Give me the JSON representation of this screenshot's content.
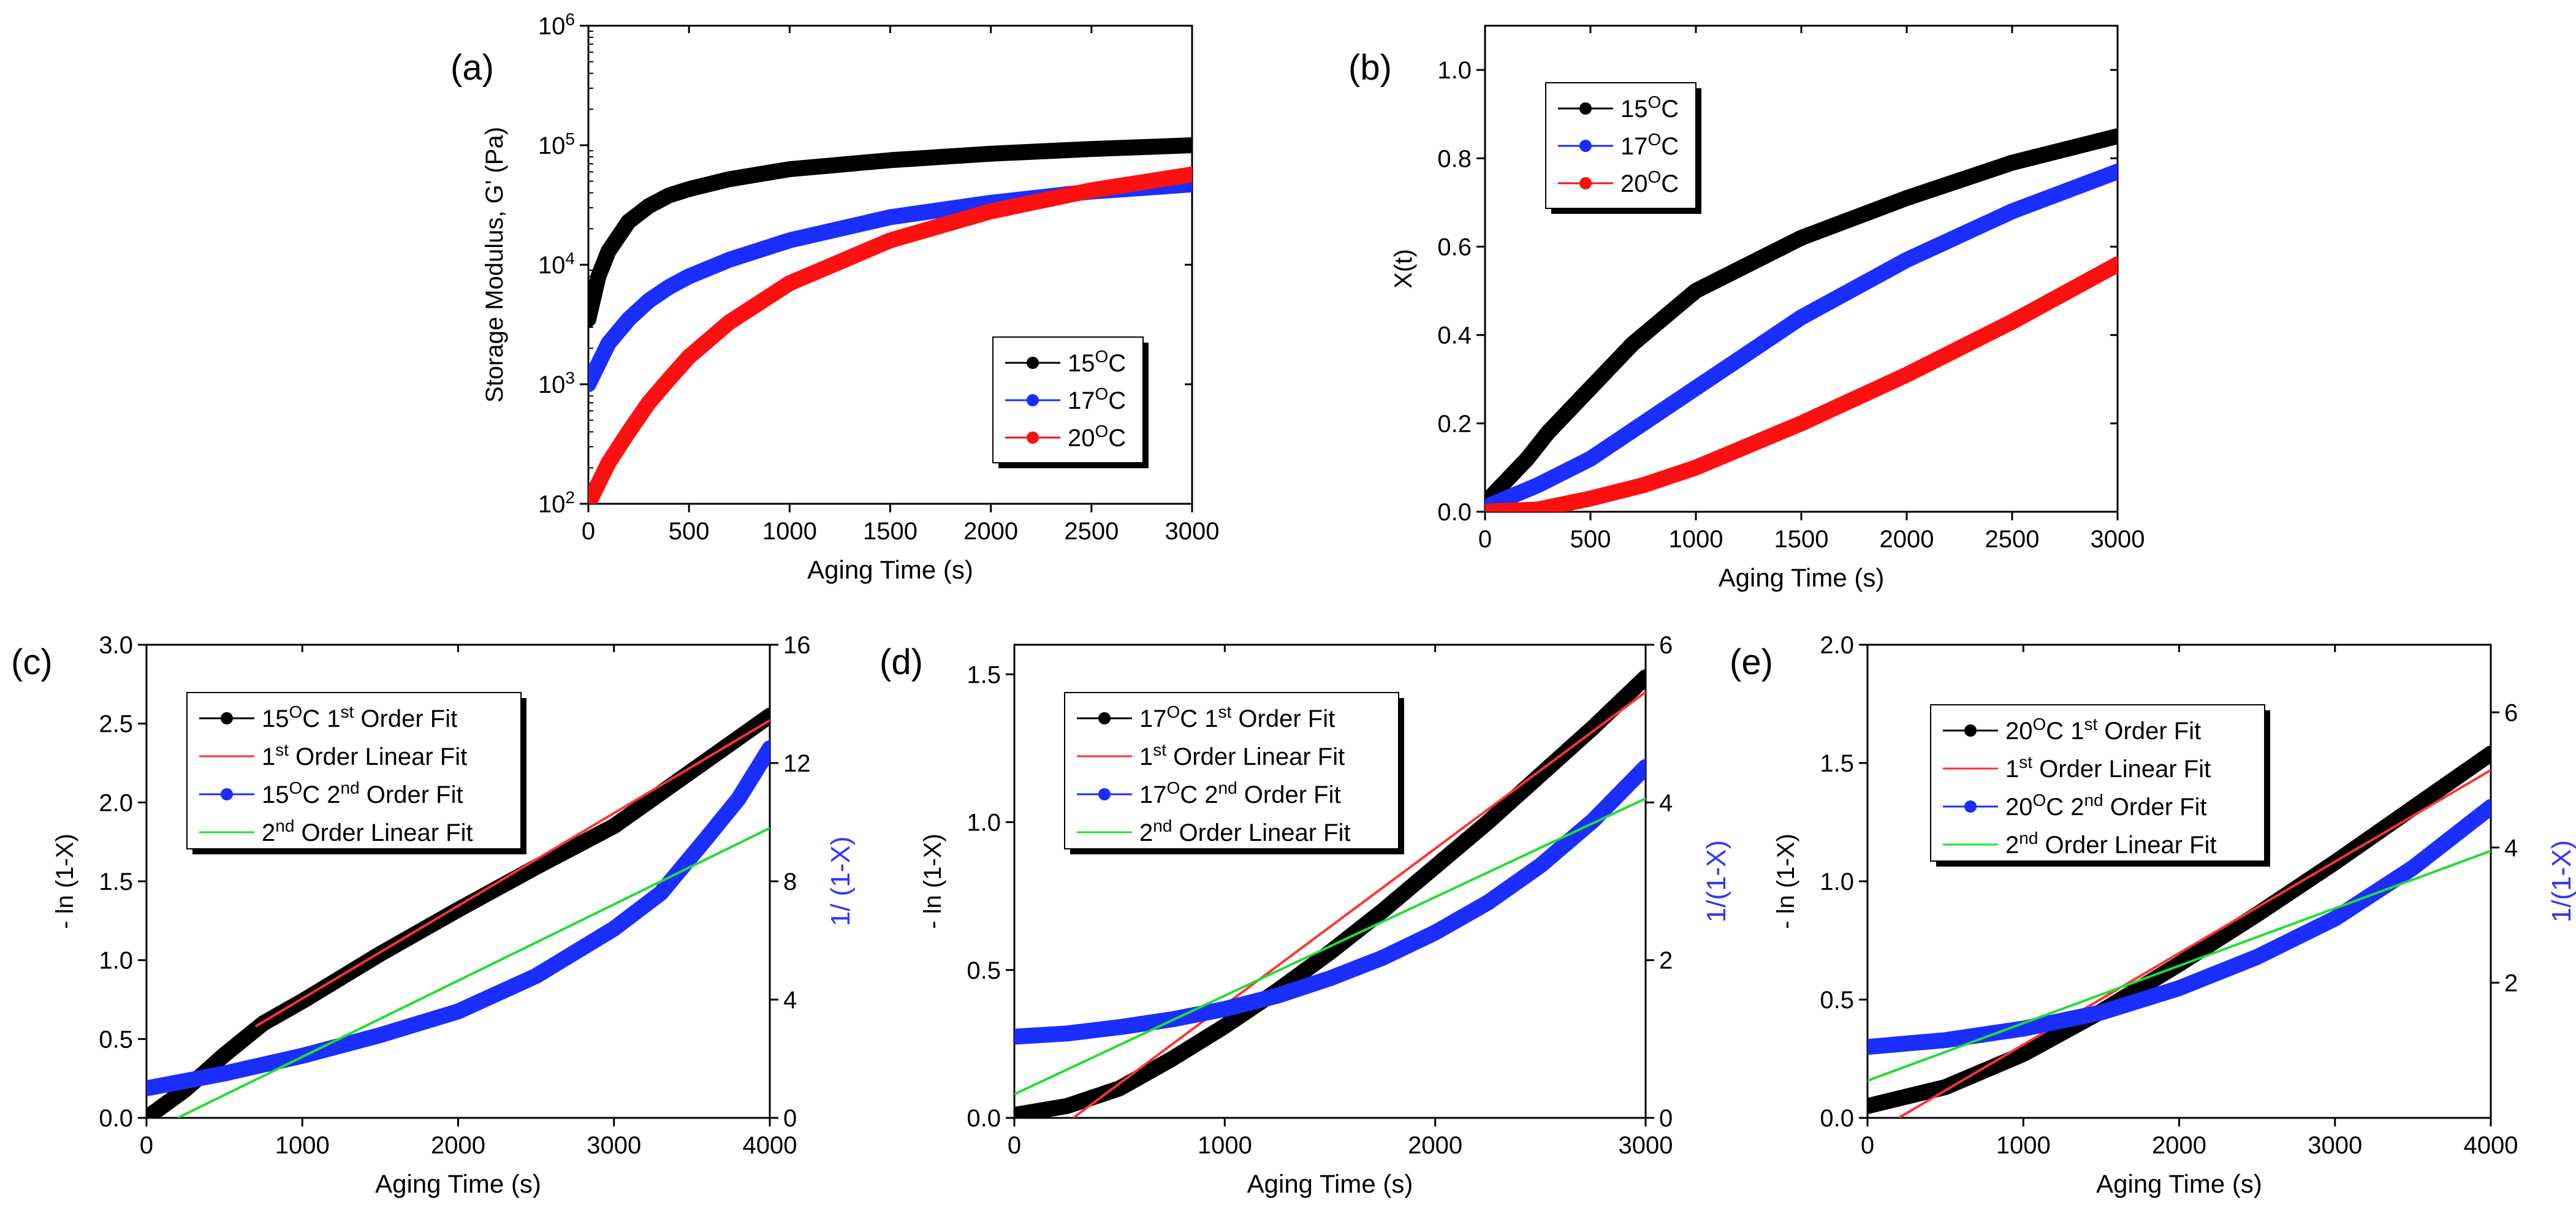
{
  "figure": {
    "colors": {
      "black": "#000000",
      "blue": "#1a2eff",
      "red": "#ff1010",
      "green": "#22dd33",
      "fit_red": "#ff3333",
      "right_axis": "#3333ff"
    }
  },
  "chart_data": [
    {
      "id": "a",
      "panel_label": "(a)",
      "type": "line",
      "title": "",
      "xlabel": "Aging Time (s)",
      "ylabel": "Storage Modulus, G' (Pa)",
      "xlim": [
        0,
        3000
      ],
      "ylim": [
        100,
        1000000
      ],
      "yscale": "log",
      "xticks": [
        0,
        500,
        1000,
        1500,
        2000,
        2500,
        3000
      ],
      "xtick_labels": [
        "0",
        "500",
        "1000",
        "1500",
        "2000",
        "2500",
        "3000"
      ],
      "yticks": [
        100,
        1000,
        10000,
        100000,
        1000000
      ],
      "ytick_labels": [
        {
          "base": "10",
          "exp": "2"
        },
        {
          "base": "10",
          "exp": "3"
        },
        {
          "base": "10",
          "exp": "4"
        },
        {
          "base": "10",
          "exp": "5"
        },
        {
          "base": "10",
          "exp": "6"
        }
      ],
      "legend": {
        "position": "middle-right",
        "entries": [
          {
            "pre": "15",
            "sup": "O",
            "post": "C",
            "color": "black"
          },
          {
            "pre": "17",
            "sup": "O",
            "post": "C",
            "color": "blue"
          },
          {
            "pre": "20",
            "sup": "O",
            "post": "C",
            "color": "red"
          }
        ]
      },
      "series": [
        {
          "name": "15 C",
          "color": "black",
          "style": "dots",
          "x": [
            0,
            50,
            100,
            200,
            300,
            400,
            500,
            700,
            1000,
            1500,
            2000,
            2500,
            3000
          ],
          "y": [
            3500,
            8000,
            13000,
            23000,
            31000,
            38000,
            43000,
            52000,
            63000,
            75000,
            85000,
            93000,
            100000
          ]
        },
        {
          "name": "17 C",
          "color": "blue",
          "style": "dots",
          "x": [
            0,
            100,
            200,
            300,
            400,
            500,
            700,
            1000,
            1500,
            2000,
            2500,
            3000
          ],
          "y": [
            1000,
            2200,
            3500,
            5000,
            6500,
            8000,
            11000,
            16000,
            25000,
            33000,
            41000,
            47000
          ]
        },
        {
          "name": "20 C",
          "color": "red",
          "style": "dots",
          "x": [
            0,
            100,
            200,
            300,
            400,
            500,
            700,
            1000,
            1500,
            2000,
            2500,
            3000
          ],
          "y": [
            100,
            220,
            400,
            700,
            1100,
            1700,
            3300,
            7000,
            16000,
            28000,
            42000,
            57000
          ]
        }
      ]
    },
    {
      "id": "b",
      "panel_label": "(b)",
      "type": "line",
      "title": "",
      "xlabel": "Aging Time (s)",
      "ylabel": "X(t)",
      "xlim": [
        0,
        3000
      ],
      "ylim": [
        0,
        1.1
      ],
      "xticks": [
        0,
        500,
        1000,
        1500,
        2000,
        2500,
        3000
      ],
      "xtick_labels": [
        "0",
        "500",
        "1000",
        "1500",
        "2000",
        "2500",
        "3000"
      ],
      "yticks": [
        0,
        0.2,
        0.4,
        0.6,
        0.8,
        1.0
      ],
      "ytick_labels": [
        "0.0",
        "0.2",
        "0.4",
        "0.6",
        "0.8",
        "1.0"
      ],
      "legend": {
        "position": "top-left",
        "entries": [
          {
            "pre": "15",
            "sup": "O",
            "post": "C",
            "color": "black"
          },
          {
            "pre": "17",
            "sup": "O",
            "post": "C",
            "color": "blue"
          },
          {
            "pre": "20",
            "sup": "O",
            "post": "C",
            "color": "red"
          }
        ]
      },
      "series": [
        {
          "name": "15 C",
          "color": "black",
          "style": "dots",
          "x": [
            0,
            100,
            200,
            300,
            500,
            700,
            1000,
            1500,
            2000,
            2500,
            3000
          ],
          "y": [
            0.02,
            0.07,
            0.12,
            0.18,
            0.28,
            0.38,
            0.5,
            0.62,
            0.71,
            0.79,
            0.85
          ]
        },
        {
          "name": "17 C",
          "color": "blue",
          "style": "dots",
          "x": [
            0,
            100,
            250,
            500,
            750,
            1000,
            1250,
            1500,
            2000,
            2500,
            3000
          ],
          "y": [
            0.01,
            0.03,
            0.06,
            0.12,
            0.2,
            0.28,
            0.36,
            0.44,
            0.57,
            0.68,
            0.77
          ]
        },
        {
          "name": "20 C",
          "color": "red",
          "style": "dots",
          "x": [
            0,
            250,
            500,
            750,
            1000,
            1500,
            2000,
            2500,
            3000
          ],
          "y": [
            0.0,
            0.005,
            0.03,
            0.06,
            0.1,
            0.2,
            0.31,
            0.43,
            0.56
          ]
        }
      ]
    },
    {
      "id": "c",
      "panel_label": "(c)",
      "type": "line",
      "title": "",
      "xlabel": "Aging Time (s)",
      "ylabel": "- ln (1-X)",
      "y2label": "1/ (1-X)",
      "xlim": [
        0,
        4000
      ],
      "ylim": [
        0,
        3.0
      ],
      "y2lim": [
        0,
        16
      ],
      "xticks": [
        0,
        1000,
        2000,
        3000,
        4000
      ],
      "xtick_labels": [
        "0",
        "1000",
        "2000",
        "3000",
        "4000"
      ],
      "yticks": [
        0,
        0.5,
        1.0,
        1.5,
        2.0,
        2.5,
        3.0
      ],
      "ytick_labels": [
        "0.0",
        "0.5",
        "1.0",
        "1.5",
        "2.0",
        "2.5",
        "3.0"
      ],
      "y2ticks": [
        0,
        4,
        8,
        12,
        16
      ],
      "y2tick_labels": [
        "0",
        "4",
        "8",
        "12",
        "16"
      ],
      "legend": {
        "position": "top-left",
        "entries": [
          {
            "pre": "15",
            "sup": "O",
            "post": "C 1",
            "sup2": "st",
            "post2": " Order Fit",
            "color": "black",
            "marker": true
          },
          {
            "pre": "1",
            "sup": "st",
            "post": " Order Linear Fit",
            "color": "fit_red",
            "marker": false
          },
          {
            "pre": "15",
            "sup": "O",
            "post": "C 2",
            "sup2": "nd",
            "post2": " Order Fit",
            "color": "blue",
            "marker": true
          },
          {
            "pre": "2",
            "sup": "nd",
            "post": " Order Linear Fit",
            "color": "green",
            "marker": false
          }
        ]
      },
      "series": [
        {
          "name": "15 C 1st Order Fit",
          "color": "black",
          "style": "dots",
          "axis": "left",
          "x": [
            0,
            250,
            500,
            750,
            1000,
            1500,
            2000,
            2500,
            3000,
            3500,
            4000
          ],
          "y": [
            0.0,
            0.18,
            0.4,
            0.6,
            0.74,
            1.04,
            1.32,
            1.59,
            1.85,
            2.2,
            2.55
          ]
        },
        {
          "name": "1st Order Linear Fit",
          "color": "fit_red",
          "style": "line",
          "axis": "left",
          "x": [
            700,
            4000
          ],
          "y": [
            0.58,
            2.52
          ]
        },
        {
          "name": "15 C 2nd Order Fit",
          "color": "blue",
          "style": "dots",
          "axis": "right",
          "x": [
            0,
            500,
            1000,
            1500,
            2000,
            2500,
            3000,
            3300,
            3600,
            3800,
            4000
          ],
          "y": [
            1.0,
            1.5,
            2.1,
            2.8,
            3.6,
            4.8,
            6.4,
            7.6,
            9.5,
            10.8,
            12.5
          ]
        },
        {
          "name": "2nd Order Linear Fit",
          "color": "green",
          "style": "line",
          "axis": "right",
          "x": [
            200,
            4000
          ],
          "y": [
            0.0,
            9.8
          ]
        }
      ]
    },
    {
      "id": "d",
      "panel_label": "(d)",
      "type": "line",
      "title": "",
      "xlabel": "Aging Time (s)",
      "ylabel": "- ln (1-X)",
      "y2label": "1/(1-X)",
      "xlim": [
        0,
        3000
      ],
      "ylim": [
        0,
        1.6
      ],
      "y2lim": [
        0,
        6
      ],
      "xticks": [
        0,
        1000,
        2000,
        3000
      ],
      "xtick_labels": [
        "0",
        "1000",
        "2000",
        "3000"
      ],
      "yticks": [
        0,
        0.5,
        1.0,
        1.5
      ],
      "ytick_labels": [
        "0.0",
        "0.5",
        "1.0",
        "1.5"
      ],
      "y2ticks": [
        0,
        2,
        4,
        6
      ],
      "y2tick_labels": [
        "0",
        "2",
        "4",
        "6"
      ],
      "legend": {
        "position": "top-left",
        "entries": [
          {
            "pre": "17",
            "sup": "O",
            "post": "C 1",
            "sup2": "st",
            "post2": " Order Fit",
            "color": "black",
            "marker": true
          },
          {
            "pre": "1",
            "sup": "st",
            "post": " Order Linear Fit",
            "color": "fit_red",
            "marker": false
          },
          {
            "pre": "17",
            "sup": "O",
            "post": "C 2",
            "sup2": "nd",
            "post2": " Order Fit",
            "color": "blue",
            "marker": true
          },
          {
            "pre": "2",
            "sup": "nd",
            "post": " Order Linear Fit",
            "color": "green",
            "marker": false
          }
        ]
      },
      "series": [
        {
          "name": "17 C 1st Order Fit",
          "color": "black",
          "style": "dots",
          "axis": "left",
          "x": [
            0,
            250,
            500,
            750,
            1000,
            1250,
            1500,
            1750,
            2000,
            2250,
            2500,
            2750,
            3000
          ],
          "y": [
            0.01,
            0.04,
            0.1,
            0.2,
            0.31,
            0.43,
            0.56,
            0.7,
            0.85,
            1.0,
            1.16,
            1.32,
            1.49
          ]
        },
        {
          "name": "1st Order Linear Fit",
          "color": "fit_red",
          "style": "line",
          "axis": "left",
          "x": [
            280,
            3000
          ],
          "y": [
            0.0,
            1.44
          ]
        },
        {
          "name": "17 C 2nd Order Fit",
          "color": "blue",
          "style": "dots",
          "axis": "right",
          "x": [
            0,
            250,
            500,
            750,
            1000,
            1250,
            1500,
            1750,
            2000,
            2250,
            2500,
            2750,
            3000
          ],
          "y": [
            1.03,
            1.07,
            1.15,
            1.25,
            1.38,
            1.55,
            1.77,
            2.03,
            2.35,
            2.73,
            3.2,
            3.77,
            4.45
          ]
        },
        {
          "name": "2nd Order Linear Fit",
          "color": "green",
          "style": "line",
          "axis": "right",
          "x": [
            0,
            3000
          ],
          "y": [
            0.3,
            4.05
          ]
        }
      ]
    },
    {
      "id": "e",
      "panel_label": "(e)",
      "type": "line",
      "title": "",
      "xlabel": "Aging Time (s)",
      "ylabel": "- ln (1-X)",
      "y2label": "1/(1-X)",
      "xlim": [
        0,
        4000
      ],
      "ylim": [
        0,
        2.0
      ],
      "y2lim": [
        0,
        7
      ],
      "xticks": [
        0,
        1000,
        2000,
        3000,
        4000
      ],
      "xtick_labels": [
        "0",
        "1000",
        "2000",
        "3000",
        "4000"
      ],
      "yticks": [
        0,
        0.5,
        1.0,
        1.5,
        2.0
      ],
      "ytick_labels": [
        "0.0",
        "0.5",
        "1.0",
        "1.5",
        "2.0"
      ],
      "y2ticks": [
        2,
        4,
        6
      ],
      "y2tick_labels": [
        "2",
        "4",
        "6"
      ],
      "legend": {
        "position": "top-left",
        "entries": [
          {
            "pre": "20",
            "sup": "O",
            "post": "C 1",
            "sup2": "st",
            "post2": " Order Fit",
            "color": "black",
            "marker": true
          },
          {
            "pre": "1",
            "sup": "st",
            "post": " Order Linear Fit",
            "color": "fit_red",
            "marker": false
          },
          {
            "pre": "20",
            "sup": "O",
            "post": "C 2",
            "sup2": "nd",
            "post2": " Order Fit",
            "color": "blue",
            "marker": true
          },
          {
            "pre": "2",
            "sup": "nd",
            "post": " Order Linear Fit",
            "color": "green",
            "marker": false
          }
        ]
      },
      "series": [
        {
          "name": "20 C 1st Order Fit",
          "color": "black",
          "style": "dots",
          "axis": "left",
          "x": [
            0,
            500,
            1000,
            1500,
            2000,
            2500,
            3000,
            3500,
            4000
          ],
          "y": [
            0.05,
            0.13,
            0.27,
            0.45,
            0.65,
            0.86,
            1.08,
            1.31,
            1.54
          ]
        },
        {
          "name": "1st Order Linear Fit",
          "color": "fit_red",
          "style": "line",
          "axis": "left",
          "x": [
            200,
            4000
          ],
          "y": [
            0.0,
            1.47
          ]
        },
        {
          "name": "20 C 2nd Order Fit",
          "color": "blue",
          "style": "dots",
          "axis": "right",
          "x": [
            0,
            500,
            1000,
            1500,
            2000,
            2500,
            3000,
            3500,
            4000
          ],
          "y": [
            1.05,
            1.15,
            1.32,
            1.56,
            1.92,
            2.38,
            2.95,
            3.7,
            4.6
          ]
        },
        {
          "name": "2nd Order Linear Fit",
          "color": "green",
          "style": "line",
          "axis": "right",
          "x": [
            0,
            4000
          ],
          "y": [
            0.55,
            3.95
          ]
        }
      ]
    }
  ]
}
